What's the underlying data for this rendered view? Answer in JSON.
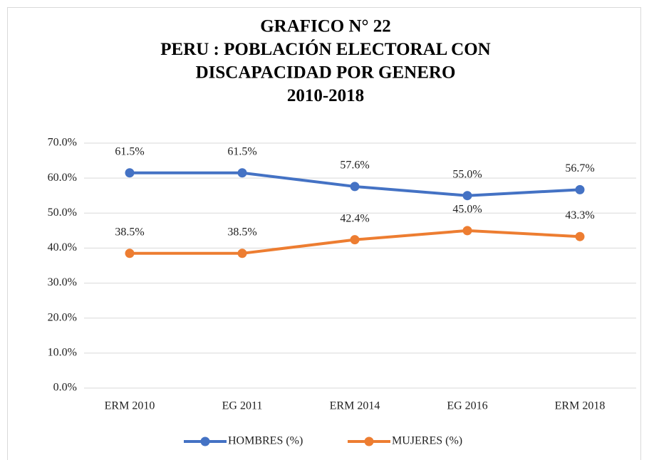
{
  "chart_data": {
    "type": "line",
    "title": [
      "GRAFICO N° 22",
      "PERU : POBLACIÓN ELECTORAL CON",
      "DISCAPACIDAD POR GENERO",
      "2010-2018"
    ],
    "categories": [
      "ERM 2010",
      "EG 2011",
      "ERM 2014",
      "EG 2016",
      "ERM 2018"
    ],
    "series": [
      {
        "name": "HOMBRES (%)",
        "color": "#4472c4",
        "values": [
          61.5,
          61.5,
          57.6,
          55.0,
          56.7
        ],
        "value_labels": [
          "61.5%",
          "61.5%",
          "57.6%",
          "55.0%",
          "56.7%"
        ]
      },
      {
        "name": "MUJERES (%)",
        "color": "#ed7d31",
        "values": [
          38.5,
          38.5,
          42.4,
          45.0,
          43.3
        ],
        "value_labels": [
          "38.5%",
          "38.5%",
          "42.4%",
          "45.0%",
          "43.3%"
        ]
      }
    ],
    "ylim": [
      0,
      70
    ],
    "yticks": [
      {
        "value": 0,
        "label": "0.0%"
      },
      {
        "value": 10,
        "label": "10.0%"
      },
      {
        "value": 20,
        "label": "20.0%"
      },
      {
        "value": 30,
        "label": "30.0%"
      },
      {
        "value": 40,
        "label": "40.0%"
      },
      {
        "value": 50,
        "label": "50.0%"
      },
      {
        "value": 60,
        "label": "60.0%"
      },
      {
        "value": 70,
        "label": "70.0%"
      }
    ],
    "grid": true,
    "legend": "bottom"
  }
}
